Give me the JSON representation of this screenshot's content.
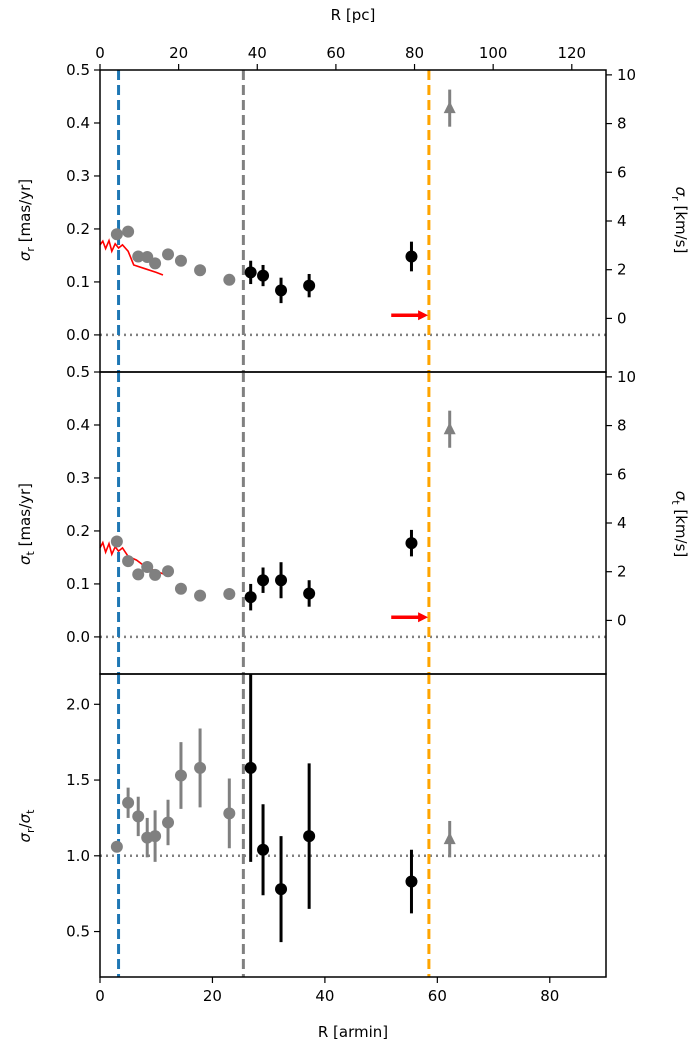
{
  "colors": {
    "gray": "#808080",
    "black": "#000000",
    "red": "#ff0000",
    "blue": "#1f77b4",
    "orange": "#ffa500",
    "gridline": "#808080"
  },
  "chart_data": [
    {
      "type": "scatter",
      "panel": "top",
      "xlim": [
        0,
        90
      ],
      "ylim": [
        -0.07,
        0.5
      ],
      "ylabel": "σ_r [mas/yr]",
      "y2label": "σ_r [km/s]",
      "top_xlabel": "R [pc]",
      "top_xticks": [
        "0",
        "20",
        "40",
        "60",
        "80",
        "100",
        "120"
      ],
      "yticks": [
        "0.0",
        "0.1",
        "0.2",
        "0.3",
        "0.4",
        "0.5"
      ],
      "y2ticks": [
        "0",
        "2",
        "4",
        "6",
        "8",
        "10"
      ],
      "vlines": [
        {
          "x": 3.3,
          "color": "blue"
        },
        {
          "x": 25.5,
          "color": "gray"
        },
        {
          "x": 58.5,
          "color": "orange"
        }
      ],
      "hline": 0,
      "series": [
        {
          "marker": "circle",
          "color": "gray",
          "points": [
            {
              "x": 3.0,
              "y": 0.19
            },
            {
              "x": 5.0,
              "y": 0.195
            },
            {
              "x": 6.8,
              "y": 0.148
            },
            {
              "x": 8.4,
              "y": 0.147
            },
            {
              "x": 9.8,
              "y": 0.135
            },
            {
              "x": 12.1,
              "y": 0.152
            },
            {
              "x": 14.4,
              "y": 0.14
            },
            {
              "x": 17.8,
              "y": 0.122
            },
            {
              "x": 23.0,
              "y": 0.104
            }
          ]
        },
        {
          "marker": "circle",
          "color": "black",
          "points": [
            {
              "x": 26.8,
              "y": 0.118,
              "err": 0.022
            },
            {
              "x": 29.0,
              "y": 0.112,
              "err": 0.02
            },
            {
              "x": 32.2,
              "y": 0.084,
              "err": 0.024
            },
            {
              "x": 37.2,
              "y": 0.093,
              "err": 0.022
            },
            {
              "x": 55.4,
              "y": 0.148,
              "err": 0.028
            }
          ]
        },
        {
          "marker": "triangle",
          "color": "gray",
          "points": [
            {
              "x": 62.2,
              "y": 0.428,
              "err": 0.035
            }
          ]
        }
      ],
      "model_line": [
        [
          0.0,
          0.17
        ],
        [
          0.5,
          0.177
        ],
        [
          1.0,
          0.163
        ],
        [
          1.6,
          0.178
        ],
        [
          2.1,
          0.158
        ],
        [
          2.7,
          0.172
        ],
        [
          3.3,
          0.164
        ],
        [
          4.0,
          0.17
        ],
        [
          5.0,
          0.158
        ],
        [
          6.0,
          0.132
        ],
        [
          8.0,
          0.125
        ],
        [
          10.0,
          0.118
        ],
        [
          11.2,
          0.113
        ]
      ],
      "arrow": {
        "x1": 51.8,
        "x2": 58.0,
        "y": 0.037
      }
    },
    {
      "type": "scatter",
      "panel": "middle",
      "xlim": [
        0,
        90
      ],
      "ylim": [
        -0.07,
        0.5
      ],
      "ylabel": "σ_t [mas/yr]",
      "y2label": "σ_t [km/s]",
      "yticks": [
        "0.0",
        "0.1",
        "0.2",
        "0.3",
        "0.4",
        "0.5"
      ],
      "y2ticks": [
        "0",
        "2",
        "4",
        "6",
        "8",
        "10"
      ],
      "vlines": [
        {
          "x": 3.3,
          "color": "blue"
        },
        {
          "x": 25.5,
          "color": "gray"
        },
        {
          "x": 58.5,
          "color": "orange"
        }
      ],
      "hline": 0,
      "series": [
        {
          "marker": "circle",
          "color": "gray",
          "points": [
            {
              "x": 3.0,
              "y": 0.18
            },
            {
              "x": 5.0,
              "y": 0.143
            },
            {
              "x": 6.8,
              "y": 0.118
            },
            {
              "x": 8.4,
              "y": 0.132
            },
            {
              "x": 9.8,
              "y": 0.117
            },
            {
              "x": 12.1,
              "y": 0.124
            },
            {
              "x": 14.4,
              "y": 0.091
            },
            {
              "x": 17.8,
              "y": 0.078
            },
            {
              "x": 23.0,
              "y": 0.081
            }
          ]
        },
        {
          "marker": "circle",
          "color": "black",
          "points": [
            {
              "x": 26.8,
              "y": 0.075,
              "err": 0.025
            },
            {
              "x": 29.0,
              "y": 0.107,
              "err": 0.024
            },
            {
              "x": 32.2,
              "y": 0.107,
              "err": 0.034
            },
            {
              "x": 37.2,
              "y": 0.082,
              "err": 0.025
            },
            {
              "x": 55.4,
              "y": 0.177,
              "err": 0.025
            }
          ]
        },
        {
          "marker": "triangle",
          "color": "gray",
          "points": [
            {
              "x": 62.2,
              "y": 0.392,
              "err": 0.035
            }
          ]
        }
      ],
      "model_line": [
        [
          0.0,
          0.168
        ],
        [
          0.5,
          0.178
        ],
        [
          1.0,
          0.16
        ],
        [
          1.6,
          0.176
        ],
        [
          2.1,
          0.156
        ],
        [
          2.7,
          0.17
        ],
        [
          3.3,
          0.162
        ],
        [
          4.0,
          0.168
        ],
        [
          5.0,
          0.152
        ],
        [
          6.5,
          0.145
        ],
        [
          8.0,
          0.133
        ],
        [
          10.0,
          0.124
        ],
        [
          11.5,
          0.118
        ]
      ],
      "arrow": {
        "x1": 51.8,
        "x2": 58.0,
        "y": 0.037
      }
    },
    {
      "type": "scatter",
      "panel": "bottom",
      "xlim": [
        0,
        90
      ],
      "ylim": [
        0.2,
        2.2
      ],
      "ylabel": "σ_r/σ_t",
      "xlabel": "R [armin]",
      "xticks": [
        "0",
        "20",
        "40",
        "60",
        "80"
      ],
      "yticks": [
        "0.5",
        "1.0",
        "1.5",
        "2.0"
      ],
      "vlines": [
        {
          "x": 3.3,
          "color": "blue"
        },
        {
          "x": 25.5,
          "color": "gray"
        },
        {
          "x": 58.5,
          "color": "orange"
        }
      ],
      "hline": 1.0,
      "series": [
        {
          "marker": "circle",
          "color": "gray",
          "points": [
            {
              "x": 3.0,
              "y": 1.06,
              "err": 0.03
            },
            {
              "x": 5.0,
              "y": 1.35,
              "err": 0.1
            },
            {
              "x": 6.8,
              "y": 1.26,
              "err": 0.13
            },
            {
              "x": 8.4,
              "y": 1.12,
              "err": 0.13
            },
            {
              "x": 9.8,
              "y": 1.13,
              "err": 0.17
            },
            {
              "x": 12.1,
              "y": 1.22,
              "err": 0.15
            },
            {
              "x": 14.4,
              "y": 1.53,
              "err": 0.22
            },
            {
              "x": 17.8,
              "y": 1.58,
              "err": 0.26
            },
            {
              "x": 23.0,
              "y": 1.28,
              "err": 0.23
            }
          ]
        },
        {
          "marker": "circle",
          "color": "black",
          "points": [
            {
              "x": 26.8,
              "y": 1.58,
              "err": 0.62
            },
            {
              "x": 29.0,
              "y": 1.04,
              "err": 0.3
            },
            {
              "x": 32.2,
              "y": 0.78,
              "err": 0.35
            },
            {
              "x": 37.2,
              "y": 1.13,
              "err": 0.48
            },
            {
              "x": 55.4,
              "y": 0.83,
              "err": 0.21
            }
          ]
        },
        {
          "marker": "triangle",
          "color": "gray",
          "points": [
            {
              "x": 62.2,
              "y": 1.11,
              "err": 0.12
            }
          ]
        }
      ]
    }
  ]
}
